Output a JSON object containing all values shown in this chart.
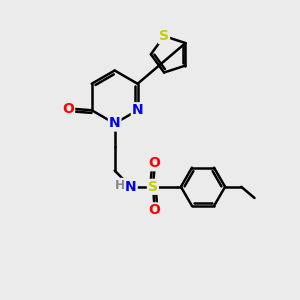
{
  "bg_color": "#ebebeb",
  "bond_color": "black",
  "bond_width": 1.8,
  "atom_colors": {
    "C": "black",
    "N": "blue",
    "O": "red",
    "S_thio": "#cccc00",
    "S_sulf": "#cccc00",
    "H": "#888888"
  },
  "font_size": 10,
  "fig_size": [
    3.0,
    3.0
  ],
  "dpi": 100
}
